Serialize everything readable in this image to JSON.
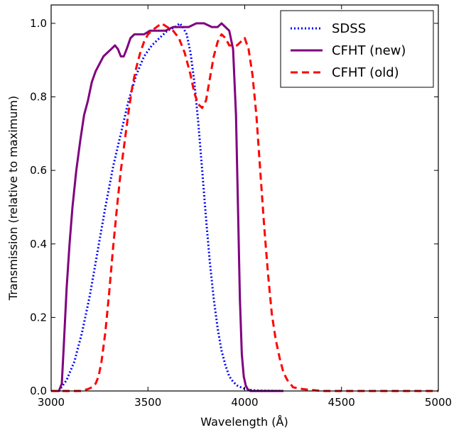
{
  "chart_data": {
    "type": "line",
    "xlabel": "Wavelength (Å)",
    "ylabel": "Transmission (relative to maximum)",
    "xlim": [
      3000,
      5000
    ],
    "ylim": [
      0,
      1.05
    ],
    "xticks": [
      3000,
      3500,
      4000,
      4500,
      5000
    ],
    "yticks": [
      0.0,
      0.2,
      0.4,
      0.6,
      0.8,
      1.0
    ],
    "xtick_labels": [
      "3000",
      "3500",
      "4000",
      "4500",
      "5000"
    ],
    "ytick_labels": [
      "0.0",
      "0.2",
      "0.4",
      "0.6",
      "0.8",
      "1.0"
    ],
    "grid": false,
    "legend_position": "top-right",
    "series": [
      {
        "name": "SDSS",
        "color": "#0000ff",
        "style": "dotted",
        "x": [
          3040,
          3080,
          3120,
          3160,
          3200,
          3240,
          3280,
          3320,
          3360,
          3400,
          3440,
          3480,
          3520,
          3560,
          3600,
          3640,
          3665,
          3680,
          3700,
          3720,
          3740,
          3760,
          3780,
          3800,
          3820,
          3840,
          3860,
          3880,
          3900,
          3920,
          3940,
          3960,
          3980,
          4000,
          4020,
          4040,
          4080,
          4200
        ],
        "y": [
          0.0,
          0.03,
          0.08,
          0.16,
          0.26,
          0.38,
          0.5,
          0.61,
          0.7,
          0.79,
          0.86,
          0.91,
          0.94,
          0.96,
          0.98,
          0.99,
          1.0,
          0.99,
          0.97,
          0.92,
          0.84,
          0.73,
          0.6,
          0.47,
          0.35,
          0.25,
          0.17,
          0.11,
          0.07,
          0.04,
          0.025,
          0.015,
          0.01,
          0.006,
          0.004,
          0.002,
          0.001,
          0.0
        ]
      },
      {
        "name": "CFHT (new)",
        "color": "#800080",
        "style": "solid",
        "x": [
          3020,
          3040,
          3055,
          3065,
          3080,
          3095,
          3110,
          3130,
          3150,
          3170,
          3190,
          3210,
          3230,
          3250,
          3270,
          3290,
          3310,
          3330,
          3345,
          3360,
          3375,
          3390,
          3410,
          3430,
          3450,
          3480,
          3510,
          3550,
          3590,
          3630,
          3670,
          3710,
          3750,
          3790,
          3830,
          3860,
          3880,
          3900,
          3920,
          3940,
          3955,
          3965,
          3975,
          3985,
          3995,
          4005,
          4015,
          4030,
          4100,
          4200
        ],
        "y": [
          0.0,
          0.0,
          0.02,
          0.12,
          0.28,
          0.4,
          0.5,
          0.6,
          0.68,
          0.75,
          0.79,
          0.84,
          0.87,
          0.89,
          0.91,
          0.92,
          0.93,
          0.94,
          0.93,
          0.91,
          0.91,
          0.93,
          0.96,
          0.97,
          0.97,
          0.97,
          0.98,
          0.98,
          0.98,
          0.99,
          0.99,
          0.99,
          1.0,
          1.0,
          0.99,
          0.99,
          1.0,
          0.99,
          0.98,
          0.93,
          0.75,
          0.5,
          0.25,
          0.1,
          0.04,
          0.015,
          0.005,
          0.0,
          0.0,
          0.0
        ]
      },
      {
        "name": "CFHT (old)",
        "color": "#ff0000",
        "style": "dashed",
        "x": [
          3000,
          3100,
          3150,
          3190,
          3210,
          3230,
          3245,
          3260,
          3280,
          3300,
          3320,
          3340,
          3360,
          3380,
          3400,
          3420,
          3440,
          3460,
          3480,
          3500,
          3520,
          3545,
          3570,
          3600,
          3630,
          3660,
          3690,
          3720,
          3740,
          3760,
          3780,
          3800,
          3820,
          3840,
          3860,
          3880,
          3900,
          3920,
          3940,
          3960,
          3980,
          4000,
          4020,
          4040,
          4060,
          4080,
          4100,
          4120,
          4140,
          4160,
          4180,
          4200,
          4220,
          4250,
          4300,
          4400,
          4500,
          5000
        ],
        "y": [
          0.0,
          0.0,
          0.0,
          0.005,
          0.01,
          0.02,
          0.04,
          0.08,
          0.16,
          0.27,
          0.39,
          0.5,
          0.6,
          0.68,
          0.76,
          0.83,
          0.88,
          0.92,
          0.95,
          0.97,
          0.98,
          0.99,
          1.0,
          0.99,
          0.98,
          0.96,
          0.92,
          0.86,
          0.81,
          0.78,
          0.77,
          0.79,
          0.85,
          0.91,
          0.95,
          0.97,
          0.96,
          0.94,
          0.94,
          0.94,
          0.95,
          0.96,
          0.93,
          0.86,
          0.75,
          0.6,
          0.45,
          0.32,
          0.21,
          0.14,
          0.09,
          0.05,
          0.03,
          0.01,
          0.005,
          0.0,
          0.0,
          0.0
        ]
      }
    ]
  }
}
